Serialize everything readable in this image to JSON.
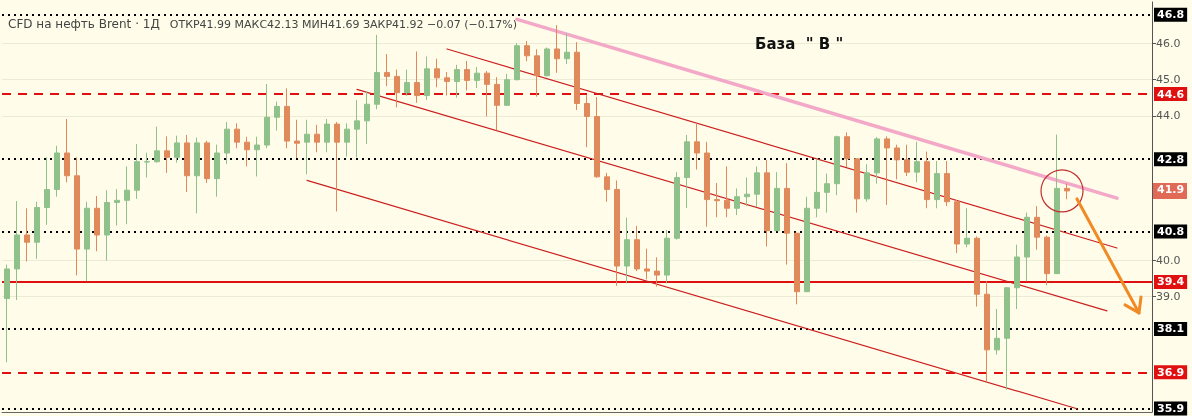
{
  "chart_data": {
    "type": "candlestick",
    "title": "CFD на нефть Brent · 1Д",
    "subtitle": "ОТКР41.99 МАКС42.13 МИН41.69 ЗАКР41.92 −0.07 (−0.17%)",
    "categories": [
      null,
      null,
      null,
      null,
      null,
      null,
      null,
      null,
      null,
      null,
      null,
      null,
      null,
      null,
      null,
      null,
      null,
      null,
      null,
      null,
      null,
      null,
      null,
      null,
      null,
      null,
      null,
      null,
      null,
      null,
      null,
      null,
      null,
      null,
      null,
      null,
      null,
      null,
      null,
      null,
      null,
      null,
      null,
      null,
      null,
      null,
      null,
      null,
      null,
      null,
      null,
      null,
      null,
      null,
      null,
      null,
      null,
      null,
      null,
      null,
      null,
      null,
      null,
      null,
      null,
      null,
      null,
      null,
      null,
      null,
      null,
      null,
      null,
      null,
      null,
      null,
      null,
      null,
      null,
      null,
      null,
      null,
      null,
      null,
      null,
      null,
      null,
      null,
      null,
      null,
      null,
      null,
      null,
      null,
      null,
      null,
      null,
      null,
      null,
      null,
      null,
      null,
      null,
      null,
      null,
      null,
      null,
      null,
      null,
      null,
      null,
      null,
      null,
      null,
      null
    ],
    "ohlc": [
      [
        38.94,
        39.88,
        37.18,
        39.76
      ],
      [
        39.76,
        41.64,
        38.9,
        40.7
      ],
      [
        40.7,
        41.44,
        39.97,
        40.5
      ],
      [
        40.5,
        41.62,
        40.04,
        41.46
      ],
      [
        41.46,
        42.85,
        40.98,
        41.96
      ],
      [
        41.96,
        43.17,
        41.76,
        42.97
      ],
      [
        42.97,
        43.91,
        42.16,
        42.34
      ],
      [
        42.34,
        42.85,
        39.58,
        40.31
      ],
      [
        40.31,
        41.62,
        39.42,
        41.44
      ],
      [
        41.44,
        41.78,
        40.25,
        40.7
      ],
      [
        40.7,
        41.94,
        39.99,
        41.6
      ],
      [
        41.6,
        41.97,
        40.96,
        41.66
      ],
      [
        41.66,
        42.6,
        41.0,
        41.94
      ],
      [
        41.94,
        43.22,
        41.7,
        42.73
      ],
      [
        42.72,
        42.98,
        42.29,
        42.73
      ],
      [
        42.73,
        43.7,
        42.7,
        43.03
      ],
      [
        43.03,
        43.43,
        42.42,
        42.85
      ],
      [
        42.85,
        43.45,
        42.7,
        43.25
      ],
      [
        43.25,
        43.47,
        41.89,
        42.34
      ],
      [
        42.34,
        43.4,
        41.3,
        43.25
      ],
      [
        43.25,
        43.31,
        42.14,
        42.26
      ],
      [
        42.26,
        43.2,
        41.76,
        42.97
      ],
      [
        42.97,
        43.83,
        42.67,
        43.63
      ],
      [
        43.63,
        43.79,
        43.1,
        43.27
      ],
      [
        43.27,
        43.42,
        42.6,
        43.06
      ],
      [
        43.06,
        43.42,
        42.32,
        43.19
      ],
      [
        43.19,
        44.88,
        43.1,
        43.96
      ],
      [
        43.96,
        44.39,
        43.59,
        44.26
      ],
      [
        44.26,
        44.76,
        43.1,
        43.3
      ],
      [
        43.3,
        43.89,
        42.83,
        43.24
      ],
      [
        43.27,
        43.89,
        42.38,
        43.49
      ],
      [
        43.49,
        43.75,
        42.99,
        43.27
      ],
      [
        43.27,
        43.91,
        42.99,
        43.77
      ],
      [
        43.77,
        43.83,
        41.35,
        43.27
      ],
      [
        43.27,
        43.79,
        42.87,
        43.63
      ],
      [
        43.63,
        44.44,
        42.85,
        43.86
      ],
      [
        43.86,
        44.68,
        43.22,
        44.32
      ],
      [
        44.32,
        46.24,
        44.18,
        45.2
      ],
      [
        45.2,
        45.71,
        44.82,
        45.09
      ],
      [
        45.09,
        45.28,
        44.23,
        44.64
      ],
      [
        44.64,
        45.28,
        44.55,
        44.92
      ],
      [
        44.92,
        45.78,
        44.36,
        44.56
      ],
      [
        44.56,
        45.64,
        44.44,
        45.3
      ],
      [
        45.3,
        45.58,
        44.79,
        45.05
      ],
      [
        45.05,
        45.21,
        44.56,
        44.95
      ],
      [
        44.95,
        45.41,
        44.5,
        45.28
      ],
      [
        45.28,
        45.52,
        44.7,
        44.98
      ],
      [
        44.98,
        45.35,
        44.77,
        45.18
      ],
      [
        45.18,
        45.24,
        43.98,
        44.87
      ],
      [
        44.87,
        45.07,
        43.6,
        44.29
      ],
      [
        44.29,
        45.16,
        44.27,
        45.0
      ],
      [
        45.0,
        46.01,
        44.98,
        45.94
      ],
      [
        45.94,
        46.07,
        45.51,
        45.66
      ],
      [
        45.66,
        45.84,
        44.53,
        45.11
      ],
      [
        45.11,
        45.89,
        45.09,
        45.85
      ],
      [
        45.85,
        46.51,
        45.19,
        45.58
      ],
      [
        45.58,
        46.28,
        45.43,
        45.76
      ],
      [
        45.76,
        46.04,
        44.16,
        44.34
      ],
      [
        44.34,
        44.57,
        43.13,
        43.98
      ],
      [
        43.98,
        44.52,
        42.29,
        42.31
      ],
      [
        42.31,
        42.42,
        41.62,
        41.96
      ],
      [
        41.96,
        42.21,
        39.29,
        39.84
      ],
      [
        39.84,
        41.18,
        39.36,
        40.57
      ],
      [
        40.57,
        40.95,
        39.7,
        39.76
      ],
      [
        39.76,
        40.32,
        39.47,
        39.7
      ],
      [
        39.7,
        40.08,
        39.27,
        39.59
      ],
      [
        39.59,
        40.84,
        39.36,
        40.61
      ],
      [
        40.61,
        42.44,
        40.57,
        42.29
      ],
      [
        42.29,
        43.47,
        41.45,
        43.28
      ],
      [
        43.28,
        43.79,
        42.51,
        42.97
      ],
      [
        42.97,
        43.28,
        40.93,
        41.68
      ],
      [
        41.68,
        42.14,
        41.19,
        41.65
      ],
      [
        41.66,
        42.6,
        41.19,
        41.44
      ],
      [
        41.44,
        41.99,
        41.25,
        41.76
      ],
      [
        41.76,
        42.29,
        41.5,
        41.83
      ],
      [
        41.83,
        42.6,
        41.47,
        42.42
      ],
      [
        42.42,
        42.78,
        40.38,
        40.82
      ],
      [
        40.82,
        42.44,
        40.82,
        41.99
      ],
      [
        41.99,
        42.69,
        39.88,
        40.75
      ],
      [
        40.75,
        40.75,
        38.78,
        39.13
      ],
      [
        39.13,
        41.76,
        39.13,
        41.44
      ],
      [
        41.44,
        42.81,
        41.19,
        41.88
      ],
      [
        41.88,
        42.4,
        41.32,
        42.12
      ],
      [
        42.12,
        43.45,
        41.8,
        43.42
      ],
      [
        43.42,
        43.54,
        42.58,
        42.81
      ],
      [
        42.81,
        42.81,
        41.32,
        41.7
      ],
      [
        41.7,
        42.66,
        41.62,
        42.42
      ],
      [
        42.42,
        43.41,
        42.12,
        43.36
      ],
      [
        43.36,
        43.43,
        41.53,
        43.11
      ],
      [
        43.11,
        43.2,
        42.24,
        42.78
      ],
      [
        42.78,
        43.2,
        42.33,
        42.44
      ],
      [
        42.44,
        43.28,
        42.16,
        42.73
      ],
      [
        42.73,
        43.01,
        41.44,
        41.68
      ],
      [
        41.68,
        42.75,
        41.44,
        42.4
      ],
      [
        42.4,
        42.75,
        41.5,
        41.62
      ],
      [
        41.62,
        41.67,
        40.2,
        40.45
      ],
      [
        40.45,
        41.44,
        40.36,
        40.61
      ],
      [
        40.61,
        40.66,
        38.72,
        39.06
      ],
      [
        39.06,
        39.42,
        36.65,
        37.52
      ],
      [
        37.52,
        38.65,
        37.39,
        37.84
      ],
      [
        37.84,
        39.26,
        36.41,
        39.24
      ],
      [
        39.24,
        40.43,
        38.65,
        40.09
      ],
      [
        40.09,
        41.32,
        39.42,
        41.19
      ],
      [
        41.19,
        41.5,
        40.29,
        40.64
      ],
      [
        40.64,
        40.68,
        39.31,
        39.63
      ],
      [
        39.63,
        43.48,
        39.63,
        41.99
      ],
      [
        41.99,
        42.13,
        41.69,
        41.92
      ],
      null,
      null,
      null,
      null,
      null,
      null,
      null,
      null
    ],
    "colors": [
      "#8fc18b",
      "#8fc18b",
      "#e08a5c",
      "#8fc18b",
      "#8fc18b",
      "#8fc18b",
      "#e08a5c",
      "#e08a5c",
      "#8fc18b",
      "#e08a5c",
      "#8fc18b",
      "#8fc18b",
      "#8fc18b",
      "#8fc18b",
      "#8fc18b",
      "#8fc18b",
      "#e08a5c",
      "#8fc18b",
      "#e08a5c",
      "#8fc18b",
      "#e08a5c",
      "#8fc18b",
      "#8fc18b",
      "#e08a5c",
      "#e08a5c",
      "#8fc18b",
      "#8fc18b",
      "#8fc18b",
      "#e08a5c",
      "#e08a5c",
      "#8fc18b",
      "#e08a5c",
      "#8fc18b",
      "#e08a5c",
      "#8fc18b",
      "#8fc18b",
      "#8fc18b",
      "#8fc18b",
      "#e08a5c",
      "#e08a5c",
      "#8fc18b",
      "#e08a5c",
      "#8fc18b",
      "#e08a5c",
      "#e08a5c",
      "#8fc18b",
      "#e08a5c",
      "#8fc18b",
      "#e08a5c",
      "#e08a5c",
      "#8fc18b",
      "#8fc18b",
      "#e08a5c",
      "#e08a5c",
      "#8fc18b",
      "#e08a5c",
      "#8fc18b",
      "#e08a5c",
      "#e08a5c",
      "#e08a5c",
      "#e08a5c",
      "#e08a5c",
      "#8fc18b",
      "#e08a5c",
      "#e08a5c",
      "#e08a5c",
      "#8fc18b",
      "#8fc18b",
      "#8fc18b",
      "#e08a5c",
      "#e08a5c",
      "#e08a5c",
      "#e08a5c",
      "#8fc18b",
      "#8fc18b",
      "#8fc18b",
      "#e08a5c",
      "#8fc18b",
      "#e08a5c",
      "#e08a5c",
      "#8fc18b",
      "#8fc18b",
      "#8fc18b",
      "#8fc18b",
      "#e08a5c",
      "#e08a5c",
      "#8fc18b",
      "#8fc18b",
      "#e08a5c",
      "#e08a5c",
      "#e08a5c",
      "#8fc18b",
      "#e08a5c",
      "#8fc18b",
      "#e08a5c",
      "#e08a5c",
      "#8fc18b",
      "#e08a5c",
      "#e08a5c",
      "#8fc18b",
      "#8fc18b",
      "#8fc18b",
      "#8fc18b",
      "#e08a5c",
      "#e08a5c",
      "#8fc18b",
      "#e08a5c",
      null,
      null,
      null,
      null,
      null,
      null,
      null,
      null
    ],
    "series": [
      {
        "type": "line",
        "color": "#f4a8c8",
        "values": [
          null,
          null,
          null,
          null,
          null,
          null,
          null,
          null,
          null,
          null,
          null,
          null,
          null,
          null,
          null,
          null,
          null,
          null,
          null,
          null,
          null,
          null,
          null,
          null,
          null,
          null,
          null,
          null,
          null,
          null,
          null,
          null,
          null,
          null,
          null,
          null,
          null,
          null,
          null,
          null,
          null,
          null,
          null,
          null,
          null,
          null,
          null,
          null,
          null,
          null,
          null,
          46.67,
          null,
          null,
          null,
          null,
          null,
          null,
          null,
          null,
          null,
          null,
          null,
          null,
          null,
          null,
          null,
          null,
          null,
          null,
          null,
          null,
          null,
          null,
          null,
          null,
          null,
          null,
          null,
          null,
          null,
          null,
          null,
          null,
          null,
          null,
          null,
          null,
          null,
          null,
          null,
          null,
          null,
          null,
          null,
          null,
          null,
          null,
          null,
          null,
          null,
          null,
          null,
          null,
          null,
          null,
          null,
          null,
          null,
          null,
          null,
          41.72,
          null,
          null,
          null
        ]
      },
      {
        "type": "line",
        "color": "#cc2020",
        "values": [
          null,
          null,
          null,
          null,
          null,
          null,
          null,
          null,
          null,
          null,
          null,
          null,
          null,
          null,
          null,
          null,
          null,
          null,
          null,
          null,
          null,
          null,
          null,
          null,
          null,
          null,
          null,
          null,
          null,
          null,
          null,
          null,
          null,
          null,
          null,
          null,
          null,
          null,
          null,
          null,
          null,
          null,
          null,
          null,
          45.85,
          null,
          null,
          null,
          null,
          null,
          null,
          null,
          null,
          null,
          null,
          null,
          null,
          null,
          null,
          null,
          null,
          null,
          null,
          null,
          null,
          null,
          null,
          null,
          null,
          null,
          null,
          null,
          null,
          null,
          null,
          null,
          null,
          null,
          null,
          null,
          null,
          null,
          null,
          null,
          null,
          null,
          null,
          null,
          null,
          null,
          null,
          null,
          null,
          null,
          null,
          null,
          null,
          null,
          null,
          null,
          null,
          null,
          null,
          null,
          null,
          null,
          null,
          null,
          null,
          null,
          null,
          40.34,
          null,
          null,
          null
        ]
      },
      {
        "type": "line",
        "color": "#cc2020",
        "values": [
          null,
          null,
          null,
          null,
          null,
          null,
          null,
          null,
          null,
          null,
          null,
          null,
          null,
          null,
          null,
          null,
          null,
          null,
          null,
          null,
          null,
          null,
          null,
          null,
          null,
          null,
          null,
          null,
          null,
          null,
          null,
          null,
          null,
          null,
          null,
          44.73,
          null,
          null,
          null,
          null,
          null,
          null,
          null,
          null,
          null,
          null,
          null,
          null,
          null,
          null,
          null,
          null,
          null,
          null,
          null,
          null,
          null,
          null,
          null,
          null,
          null,
          null,
          null,
          null,
          null,
          null,
          null,
          null,
          null,
          null,
          null,
          null,
          null,
          null,
          null,
          null,
          null,
          null,
          null,
          null,
          null,
          null,
          null,
          null,
          null,
          null,
          null,
          null,
          null,
          null,
          null,
          null,
          null,
          null,
          null,
          null,
          null,
          null,
          null,
          null,
          null,
          null,
          null,
          null,
          null,
          null,
          null,
          null,
          null,
          null,
          38.6,
          null,
          null,
          null,
          null
        ]
      },
      {
        "type": "line",
        "color": "#cc2020",
        "values": [
          null,
          null,
          null,
          null,
          null,
          null,
          null,
          null,
          null,
          null,
          null,
          null,
          null,
          null,
          null,
          null,
          null,
          null,
          null,
          null,
          null,
          null,
          null,
          null,
          null,
          null,
          null,
          null,
          null,
          null,
          42.21,
          null,
          null,
          null,
          null,
          null,
          null,
          null,
          null,
          null,
          null,
          null,
          null,
          null,
          null,
          null,
          null,
          null,
          null,
          null,
          null,
          null,
          null,
          null,
          null,
          null,
          null,
          null,
          null,
          null,
          null,
          null,
          null,
          null,
          null,
          null,
          null,
          null,
          null,
          null,
          null,
          null,
          null,
          null,
          null,
          null,
          null,
          null,
          null,
          null,
          null,
          null,
          null,
          null,
          null,
          null,
          null,
          null,
          null,
          null,
          null,
          null,
          null,
          null,
          null,
          null,
          null,
          null,
          null,
          null,
          null,
          null,
          null,
          null,
          null,
          null,
          null,
          35.89,
          null,
          null,
          null,
          null,
          null,
          null,
          null
        ]
      }
    ],
    "ylim": [
      35.8,
      47.15
    ],
    "yticks": [
      {
        "value": 39,
        "label": "39.0"
      },
      {
        "value": 40,
        "label": "40.0"
      },
      {
        "value": 44,
        "label": "44.0"
      },
      {
        "value": 45,
        "label": "45.0"
      },
      {
        "value": 46,
        "label": "46.0"
      }
    ],
    "tick_labels": "y",
    "grid": "y",
    "ref_lines": [
      {
        "axis": "y",
        "value": 46.8,
        "label": "46.8",
        "color": "#000000",
        "line_style": "dotted"
      },
      {
        "axis": "y",
        "value": 44.6,
        "label": "44.6",
        "color": "#e01010",
        "line_style": "dashed"
      },
      {
        "axis": "y",
        "value": 42.8,
        "label": "42.8",
        "color": "#000000",
        "line_style": "dotted"
      },
      {
        "axis": "y",
        "value": 40.8,
        "label": "40.8",
        "color": "#000000",
        "line_style": "dotted"
      },
      {
        "axis": "y",
        "value": 39.4,
        "label": "39.4",
        "color": "#e01010",
        "line_style": "solid"
      },
      {
        "axis": "y",
        "value": 38.1,
        "label": "38.1",
        "color": "#000000",
        "line_style": "dotted"
      },
      {
        "axis": "y",
        "value": 36.9,
        "label": "36.9",
        "color": "#e01010",
        "line_style": "dashed"
      },
      {
        "axis": "y",
        "value": 35.9,
        "label": "35.9",
        "color": "#000000",
        "line_style": "dotted"
      }
    ],
    "annotations": [
      "База  \" В \"",
      {
        "text": "41.9",
        "y": 41.92
      }
    ]
  }
}
